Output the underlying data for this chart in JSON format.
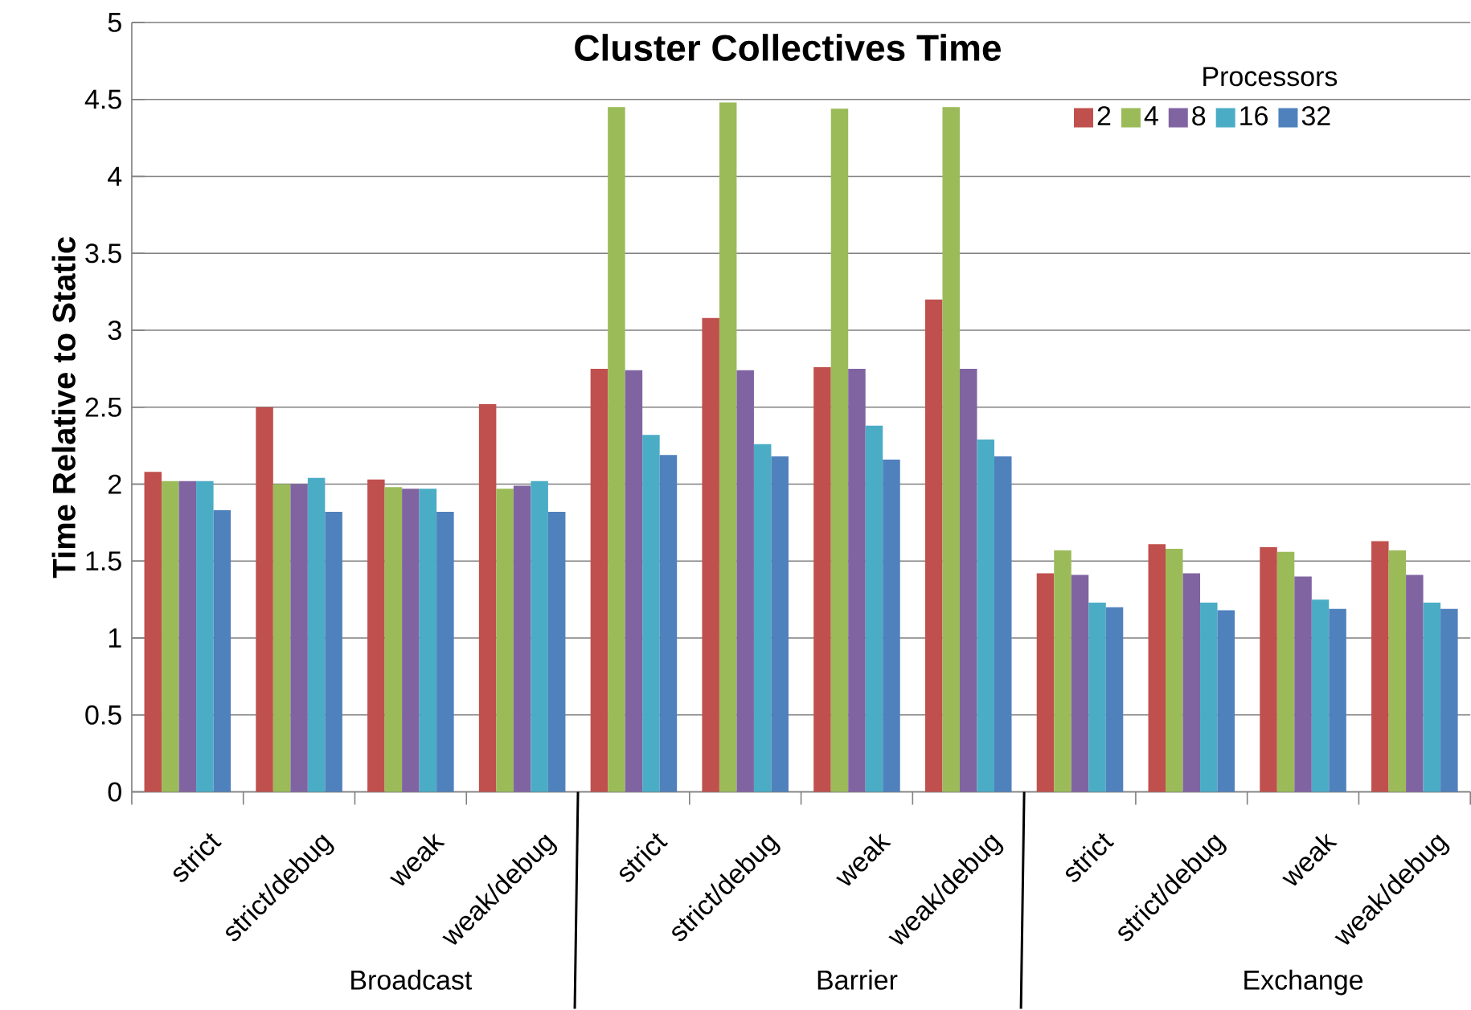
{
  "chart_data": {
    "type": "bar",
    "title": "Cluster Collectives Time",
    "ylabel": "Time Relative to Static",
    "legend_title": "Processors",
    "legend": "top right",
    "grid": "y",
    "categories": [
      "strict",
      "strict/debug",
      "weak",
      "weak/debug",
      "strict",
      "strict/debug",
      "weak",
      "weak/debug",
      "strict",
      "strict/debug",
      "weak",
      "weak/debug"
    ],
    "ylim": [
      0,
      5
    ],
    "yticks": [
      0,
      0.5,
      1,
      1.5,
      2,
      2.5,
      3,
      3.5,
      4,
      4.5,
      5
    ],
    "annotations": [
      "Broadcast",
      "Barrier",
      "Exchange"
    ],
    "series": [
      {
        "name": "2",
        "color": "#c0504d",
        "values": [
          2.08,
          2.5,
          2.03,
          2.52,
          2.75,
          3.08,
          2.76,
          3.2,
          1.42,
          1.61,
          1.59,
          1.63
        ]
      },
      {
        "name": "4",
        "color": "#9bbb59",
        "values": [
          2.02,
          2.0,
          1.98,
          1.97,
          4.45,
          4.48,
          4.44,
          4.45,
          1.57,
          1.58,
          1.56,
          1.57
        ]
      },
      {
        "name": "8",
        "color": "#8064a2",
        "values": [
          2.02,
          2.0,
          1.97,
          1.99,
          2.74,
          2.74,
          2.75,
          2.75,
          1.41,
          1.42,
          1.4,
          1.41
        ]
      },
      {
        "name": "16",
        "color": "#4bacc6",
        "values": [
          2.02,
          2.04,
          1.97,
          2.02,
          2.32,
          2.26,
          2.38,
          2.29,
          1.23,
          1.23,
          1.25,
          1.23
        ]
      },
      {
        "name": "32",
        "color": "#4f81bd",
        "values": [
          1.83,
          1.82,
          1.82,
          1.82,
          2.19,
          2.18,
          2.16,
          2.18,
          1.2,
          1.18,
          1.19,
          1.19
        ]
      }
    ]
  }
}
